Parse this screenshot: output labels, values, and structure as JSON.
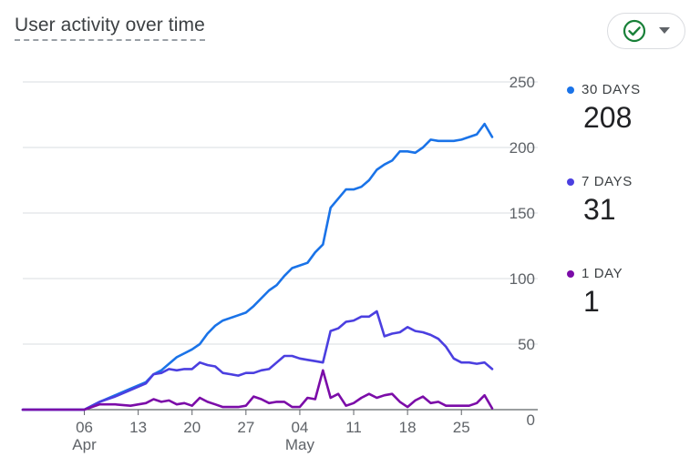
{
  "header": {
    "title": "User activity over time"
  },
  "status_icon": "check-circle-icon",
  "dropdown_icon": "caret-down-icon",
  "legend": [
    {
      "label": "30 DAYS",
      "value": "208",
      "color": "#1a73e8"
    },
    {
      "label": "7 DAYS",
      "value": "31",
      "color": "#4b3fe0"
    },
    {
      "label": "1 DAY",
      "value": "1",
      "color": "#7b0ca8"
    }
  ],
  "chart_data": {
    "type": "line",
    "title": "User activity over time",
    "x_start": "2024-03-29",
    "x_end": "2024-05-29",
    "x_ticks": [
      {
        "date": "2024-04-06",
        "label": "06",
        "sublabel": "Apr"
      },
      {
        "date": "2024-04-13",
        "label": "13",
        "sublabel": ""
      },
      {
        "date": "2024-04-20",
        "label": "20",
        "sublabel": ""
      },
      {
        "date": "2024-04-27",
        "label": "27",
        "sublabel": ""
      },
      {
        "date": "2024-05-04",
        "label": "04",
        "sublabel": "May"
      },
      {
        "date": "2024-05-11",
        "label": "11",
        "sublabel": ""
      },
      {
        "date": "2024-05-18",
        "label": "18",
        "sublabel": ""
      },
      {
        "date": "2024-05-25",
        "label": "25",
        "sublabel": ""
      }
    ],
    "y_ticks": [
      0,
      50,
      100,
      150,
      200,
      250
    ],
    "ylim": [
      0,
      250
    ],
    "y_axis_position": "right",
    "grid": true,
    "series": [
      {
        "name": "30 DAYS",
        "color": "#1a73e8",
        "points": [
          [
            "2024-03-29",
            0
          ],
          [
            "2024-04-01",
            0
          ],
          [
            "2024-04-04",
            0
          ],
          [
            "2024-04-06",
            0
          ],
          [
            "2024-04-08",
            6
          ],
          [
            "2024-04-10",
            11
          ],
          [
            "2024-04-12",
            16
          ],
          [
            "2024-04-14",
            21
          ],
          [
            "2024-04-15",
            27
          ],
          [
            "2024-04-16",
            30
          ],
          [
            "2024-04-17",
            35
          ],
          [
            "2024-04-18",
            40
          ],
          [
            "2024-04-19",
            43
          ],
          [
            "2024-04-20",
            46
          ],
          [
            "2024-04-21",
            50
          ],
          [
            "2024-04-22",
            58
          ],
          [
            "2024-04-23",
            64
          ],
          [
            "2024-04-24",
            68
          ],
          [
            "2024-04-25",
            70
          ],
          [
            "2024-04-26",
            72
          ],
          [
            "2024-04-27",
            74
          ],
          [
            "2024-04-28",
            79
          ],
          [
            "2024-04-29",
            85
          ],
          [
            "2024-04-30",
            91
          ],
          [
            "2024-05-01",
            95
          ],
          [
            "2024-05-02",
            102
          ],
          [
            "2024-05-03",
            108
          ],
          [
            "2024-05-04",
            110
          ],
          [
            "2024-05-05",
            112
          ],
          [
            "2024-05-06",
            120
          ],
          [
            "2024-05-07",
            126
          ],
          [
            "2024-05-08",
            154
          ],
          [
            "2024-05-09",
            161
          ],
          [
            "2024-05-10",
            168
          ],
          [
            "2024-05-11",
            168
          ],
          [
            "2024-05-12",
            170
          ],
          [
            "2024-05-13",
            175
          ],
          [
            "2024-05-14",
            183
          ],
          [
            "2024-05-15",
            187
          ],
          [
            "2024-05-16",
            190
          ],
          [
            "2024-05-17",
            197
          ],
          [
            "2024-05-18",
            197
          ],
          [
            "2024-05-19",
            196
          ],
          [
            "2024-05-20",
            200
          ],
          [
            "2024-05-21",
            206
          ],
          [
            "2024-05-22",
            205
          ],
          [
            "2024-05-23",
            205
          ],
          [
            "2024-05-24",
            205
          ],
          [
            "2024-05-25",
            206
          ],
          [
            "2024-05-26",
            208
          ],
          [
            "2024-05-27",
            210
          ],
          [
            "2024-05-28",
            218
          ],
          [
            "2024-05-29",
            208
          ]
        ]
      },
      {
        "name": "7 DAYS",
        "color": "#4b3fe0",
        "points": [
          [
            "2024-03-29",
            0
          ],
          [
            "2024-04-01",
            0
          ],
          [
            "2024-04-04",
            0
          ],
          [
            "2024-04-06",
            0
          ],
          [
            "2024-04-08",
            6
          ],
          [
            "2024-04-10",
            10
          ],
          [
            "2024-04-12",
            15
          ],
          [
            "2024-04-14",
            20
          ],
          [
            "2024-04-15",
            27
          ],
          [
            "2024-04-16",
            28
          ],
          [
            "2024-04-17",
            31
          ],
          [
            "2024-04-18",
            30
          ],
          [
            "2024-04-19",
            31
          ],
          [
            "2024-04-20",
            31
          ],
          [
            "2024-04-21",
            36
          ],
          [
            "2024-04-22",
            34
          ],
          [
            "2024-04-23",
            33
          ],
          [
            "2024-04-24",
            28
          ],
          [
            "2024-04-25",
            27
          ],
          [
            "2024-04-26",
            26
          ],
          [
            "2024-04-27",
            28
          ],
          [
            "2024-04-28",
            28
          ],
          [
            "2024-04-29",
            30
          ],
          [
            "2024-04-30",
            31
          ],
          [
            "2024-05-01",
            36
          ],
          [
            "2024-05-02",
            41
          ],
          [
            "2024-05-03",
            41
          ],
          [
            "2024-05-04",
            39
          ],
          [
            "2024-05-05",
            38
          ],
          [
            "2024-05-06",
            37
          ],
          [
            "2024-05-07",
            36
          ],
          [
            "2024-05-08",
            60
          ],
          [
            "2024-05-09",
            62
          ],
          [
            "2024-05-10",
            67
          ],
          [
            "2024-05-11",
            68
          ],
          [
            "2024-05-12",
            71
          ],
          [
            "2024-05-13",
            71
          ],
          [
            "2024-05-14",
            75
          ],
          [
            "2024-05-15",
            56
          ],
          [
            "2024-05-16",
            58
          ],
          [
            "2024-05-17",
            59
          ],
          [
            "2024-05-18",
            63
          ],
          [
            "2024-05-19",
            60
          ],
          [
            "2024-05-20",
            59
          ],
          [
            "2024-05-21",
            57
          ],
          [
            "2024-05-22",
            54
          ],
          [
            "2024-05-23",
            48
          ],
          [
            "2024-05-24",
            39
          ],
          [
            "2024-05-25",
            36
          ],
          [
            "2024-05-26",
            36
          ],
          [
            "2024-05-27",
            35
          ],
          [
            "2024-05-28",
            36
          ],
          [
            "2024-05-29",
            31
          ]
        ]
      },
      {
        "name": "1 DAY",
        "color": "#7b0ca8",
        "points": [
          [
            "2024-03-29",
            0
          ],
          [
            "2024-04-01",
            0
          ],
          [
            "2024-04-04",
            0
          ],
          [
            "2024-04-06",
            0
          ],
          [
            "2024-04-08",
            4
          ],
          [
            "2024-04-10",
            4
          ],
          [
            "2024-04-12",
            3
          ],
          [
            "2024-04-14",
            5
          ],
          [
            "2024-04-15",
            8
          ],
          [
            "2024-04-16",
            6
          ],
          [
            "2024-04-17",
            7
          ],
          [
            "2024-04-18",
            4
          ],
          [
            "2024-04-19",
            5
          ],
          [
            "2024-04-20",
            3
          ],
          [
            "2024-04-21",
            9
          ],
          [
            "2024-04-22",
            6
          ],
          [
            "2024-04-23",
            4
          ],
          [
            "2024-04-24",
            2
          ],
          [
            "2024-04-25",
            2
          ],
          [
            "2024-04-26",
            2
          ],
          [
            "2024-04-27",
            3
          ],
          [
            "2024-04-28",
            10
          ],
          [
            "2024-04-29",
            8
          ],
          [
            "2024-04-30",
            5
          ],
          [
            "2024-05-01",
            6
          ],
          [
            "2024-05-02",
            6
          ],
          [
            "2024-05-03",
            2
          ],
          [
            "2024-05-04",
            2
          ],
          [
            "2024-05-05",
            9
          ],
          [
            "2024-05-06",
            8
          ],
          [
            "2024-05-07",
            30
          ],
          [
            "2024-05-08",
            9
          ],
          [
            "2024-05-09",
            12
          ],
          [
            "2024-05-10",
            3
          ],
          [
            "2024-05-11",
            5
          ],
          [
            "2024-05-12",
            9
          ],
          [
            "2024-05-13",
            12
          ],
          [
            "2024-05-14",
            9
          ],
          [
            "2024-05-15",
            11
          ],
          [
            "2024-05-16",
            12
          ],
          [
            "2024-05-17",
            6
          ],
          [
            "2024-05-18",
            2
          ],
          [
            "2024-05-19",
            7
          ],
          [
            "2024-05-20",
            10
          ],
          [
            "2024-05-21",
            5
          ],
          [
            "2024-05-22",
            6
          ],
          [
            "2024-05-23",
            3
          ],
          [
            "2024-05-24",
            3
          ],
          [
            "2024-05-25",
            3
          ],
          [
            "2024-05-26",
            3
          ],
          [
            "2024-05-27",
            5
          ],
          [
            "2024-05-28",
            11
          ],
          [
            "2024-05-29",
            1
          ]
        ]
      }
    ]
  }
}
